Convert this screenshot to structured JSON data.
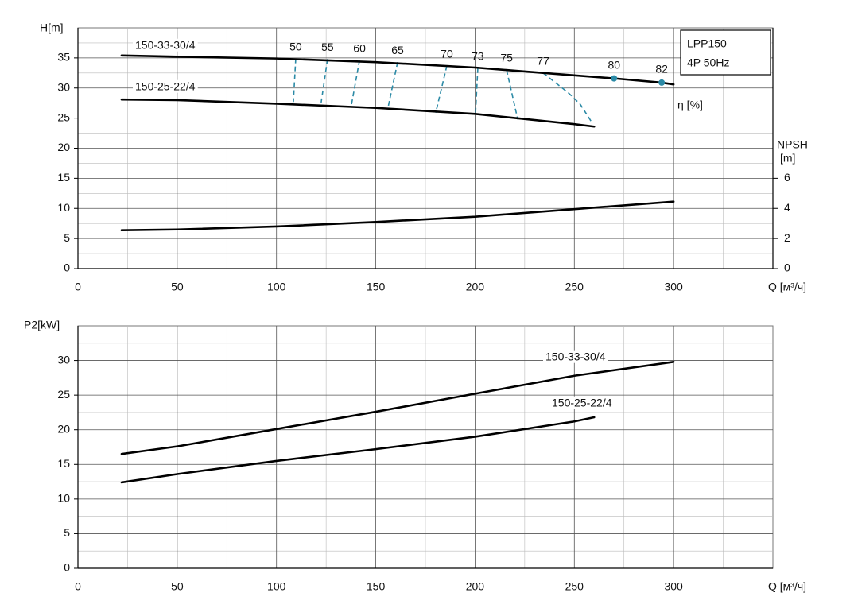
{
  "chart_data": [
    {
      "type": "line",
      "y_label": "H[m]",
      "x_label": "Q [м³/ч]",
      "y2_label": [
        "NPSH",
        "[m]"
      ],
      "xlim": [
        0,
        350
      ],
      "xticks": [
        0,
        50,
        100,
        150,
        200,
        250,
        300
      ],
      "x_minor_ticks": [
        25,
        75,
        125,
        175,
        225,
        275,
        325
      ],
      "ylim": [
        0,
        40
      ],
      "yticks": [
        0,
        5,
        10,
        15,
        20,
        25,
        30,
        35
      ],
      "y_minor_ticks": [
        2.5,
        7.5,
        12.5,
        17.5,
        22.5,
        27.5,
        32.5,
        37.5
      ],
      "y2lim": [
        0,
        16
      ],
      "y2ticks": [
        0,
        2,
        4,
        6
      ],
      "grid": true,
      "name_color": "#2b8aa6",
      "series": [
        {
          "name": "150-33-30/4",
          "color": "#000000",
          "x": [
            22,
            50,
            100,
            150,
            200,
            250,
            270,
            294,
            300
          ],
          "values": [
            35.4,
            35.2,
            34.9,
            34.3,
            33.4,
            32.1,
            31.6,
            30.9,
            30.6
          ]
        },
        {
          "name": "150-25-22/4",
          "color": "#000000",
          "x": [
            22,
            50,
            100,
            150,
            200,
            250,
            260
          ],
          "values": [
            28.1,
            28.0,
            27.4,
            26.7,
            25.7,
            24.0,
            23.6
          ]
        },
        {
          "color": "#000000",
          "axis": "y2",
          "x": [
            22,
            50,
            100,
            150,
            200,
            250,
            300
          ],
          "values": [
            2.55,
            2.6,
            2.8,
            3.1,
            3.45,
            3.95,
            4.45
          ]
        }
      ],
      "efficiency_label": "η [%]",
      "efficiency_color": "#2b8aa6",
      "efficiency_lines": [
        {
          "eta": 50,
          "x": [
            109.7,
            108.5
          ],
          "values": [
            34.9,
            27.7
          ]
        },
        {
          "eta": 55,
          "x": [
            125.7,
            122.5
          ],
          "values": [
            34.8,
            27.6
          ]
        },
        {
          "eta": 60,
          "x": [
            141.8,
            137.8
          ],
          "values": [
            34.6,
            27.3
          ]
        },
        {
          "eta": 65,
          "x": [
            161,
            156.2
          ],
          "values": [
            34.3,
            26.8
          ]
        },
        {
          "eta": 70,
          "x": [
            185.8,
            180.2
          ],
          "values": [
            33.7,
            25.9
          ]
        },
        {
          "eta": 73,
          "x": [
            201.4,
            200.2
          ],
          "values": [
            33.3,
            25.5
          ]
        },
        {
          "eta": 75,
          "x": [
            215.9,
            221.5
          ],
          "values": [
            33.0,
            24.8
          ]
        },
        {
          "eta": 77,
          "x": [
            234.3,
            247,
            253,
            259
          ],
          "values": [
            32.5,
            29.2,
            27.3,
            24.2
          ]
        }
      ],
      "efficiency_points": [
        {
          "eta": 80,
          "x": 270,
          "value": 31.6
        },
        {
          "eta": 82,
          "x": 294,
          "value": 30.9
        }
      ],
      "box": [
        "LPP150",
        "4P  50Hz"
      ]
    },
    {
      "type": "line",
      "y_label": "P2[kW]",
      "x_label": "Q [м³/ч]",
      "xlim": [
        0,
        350
      ],
      "xticks": [
        0,
        50,
        100,
        150,
        200,
        250,
        300
      ],
      "x_minor_ticks": [
        25,
        75,
        125,
        175,
        225,
        275,
        325
      ],
      "ylim": [
        0,
        35
      ],
      "yticks": [
        0,
        5,
        10,
        15,
        20,
        25,
        30
      ],
      "y_minor_ticks": [
        2.5,
        7.5,
        12.5,
        17.5,
        22.5,
        27.5,
        32.5
      ],
      "grid": true,
      "name_color": "#2b8aa6",
      "series": [
        {
          "name": "150-33-30/4",
          "color": "#000000",
          "x": [
            22,
            50,
            100,
            150,
            200,
            250,
            300
          ],
          "values": [
            16.5,
            17.6,
            20.1,
            22.6,
            25.2,
            27.8,
            29.8
          ]
        },
        {
          "name": "150-25-22/4",
          "color": "#000000",
          "x": [
            22,
            50,
            100,
            150,
            200,
            250,
            260
          ],
          "values": [
            12.4,
            13.6,
            15.5,
            17.2,
            19.0,
            21.2,
            21.8
          ]
        }
      ]
    }
  ]
}
